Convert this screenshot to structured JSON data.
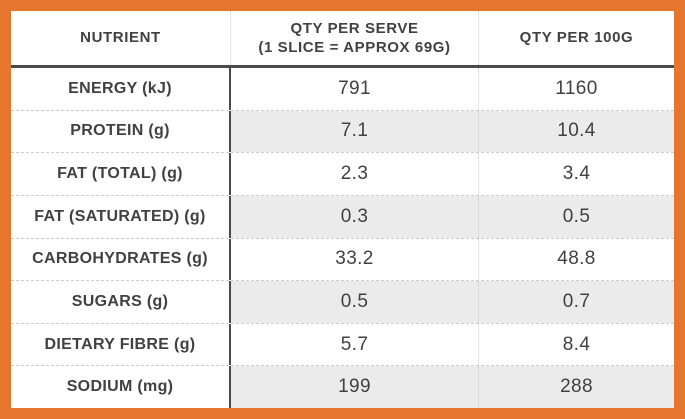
{
  "colors": {
    "frame_orange": "#E6762E",
    "text_dark": "#414042",
    "rule_dark": "#4A4A4A",
    "divider_light": "#CBCBCB",
    "row_alt_gray": "#EBEBEB"
  },
  "table": {
    "header": {
      "col1": "NUTRIENT",
      "col2_line1": "QTY PER SERVE",
      "col2_line2": "(1 SLICE = APPROX 69G)",
      "col3": "QTY PER 100G"
    },
    "rows": [
      {
        "nutrient": "ENERGY (kJ)",
        "per_serve": "791",
        "per_100g": "1160"
      },
      {
        "nutrient": "PROTEIN (g)",
        "per_serve": "7.1",
        "per_100g": "10.4"
      },
      {
        "nutrient": "FAT (TOTAL) (g)",
        "per_serve": "2.3",
        "per_100g": "3.4"
      },
      {
        "nutrient": "FAT (SATURATED) (g)",
        "per_serve": "0.3",
        "per_100g": "0.5"
      },
      {
        "nutrient": "CARBOHYDRATES (g)",
        "per_serve": "33.2",
        "per_100g": "48.8"
      },
      {
        "nutrient": "SUGARS (g)",
        "per_serve": "0.5",
        "per_100g": "0.7"
      },
      {
        "nutrient": "DIETARY FIBRE (g)",
        "per_serve": "5.7",
        "per_100g": "8.4"
      },
      {
        "nutrient": "SODIUM (mg)",
        "per_serve": "199",
        "per_100g": "288"
      }
    ]
  },
  "chart_data": {
    "type": "table",
    "columns": [
      "NUTRIENT",
      "QTY PER SERVE (1 SLICE = APPROX 69G)",
      "QTY PER 100G"
    ],
    "rows": [
      [
        "ENERGY (kJ)",
        791,
        1160
      ],
      [
        "PROTEIN (g)",
        7.1,
        10.4
      ],
      [
        "FAT (TOTAL) (g)",
        2.3,
        3.4
      ],
      [
        "FAT (SATURATED) (g)",
        0.3,
        0.5
      ],
      [
        "CARBOHYDRATES (g)",
        33.2,
        48.8
      ],
      [
        "SUGARS (g)",
        0.5,
        0.7
      ],
      [
        "DIETARY FIBRE (g)",
        5.7,
        8.4
      ],
      [
        "SODIUM (mg)",
        199,
        288
      ]
    ],
    "layout": {
      "alternating_row_shading": "value columns only, even data rows shaded",
      "frame_color": "#E6762E",
      "legend": "none"
    }
  }
}
